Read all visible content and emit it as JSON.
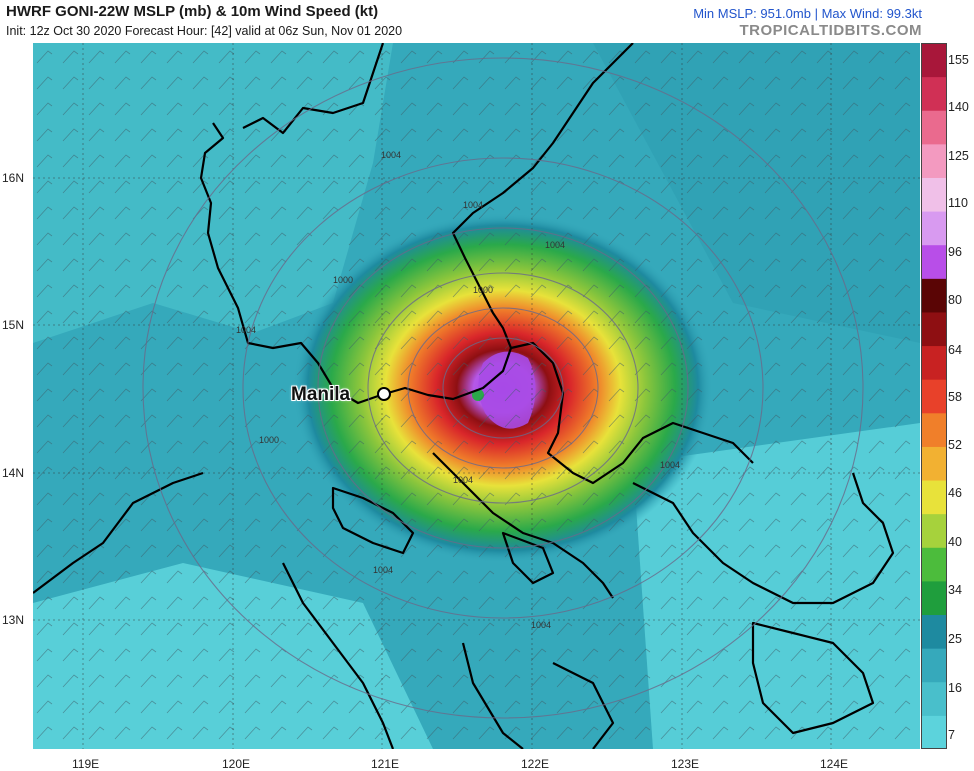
{
  "header": {
    "title": "HWRF GONI-22W MSLP (mb) & 10m Wind Speed (kt)",
    "subtitle": "Init: 12z Oct 30 2020   Forecast Hour: [42]   valid at 06z Sun, Nov 01 2020",
    "stats": "Min MSLP: 951.0mb | Max Wind: 99.3kt",
    "brand": "TROPICALTIDBITS.COM"
  },
  "map": {
    "city_label": "Manila",
    "isobar_labels": [
      "1004",
      "1004",
      "1000",
      "1004",
      "1000",
      "1004",
      "1004",
      "1004",
      "1004",
      "1000",
      "1004"
    ],
    "lat_labels": [
      "16N",
      "15N",
      "14N",
      "13N"
    ],
    "lon_labels": [
      "119E",
      "120E",
      "121E",
      "122E",
      "123E",
      "124E"
    ]
  },
  "colorbar": {
    "units": "kt",
    "tick_labels": [
      "155",
      "140",
      "125",
      "110",
      "96",
      "80",
      "64",
      "58",
      "52",
      "46",
      "40",
      "34",
      "25",
      "16",
      "7"
    ],
    "colors": [
      "#5cd3dc",
      "#49bfcb",
      "#36a9bb",
      "#1e8aa0",
      "#1f9e3d",
      "#4cbc3c",
      "#a6d23c",
      "#e8e23a",
      "#f2b132",
      "#f07f2a",
      "#e8412a",
      "#c82222",
      "#8e0f12",
      "#5a0505",
      "#b84ee8",
      "#d89af0",
      "#f0c0e8",
      "#f39ac0",
      "#ea6a8e",
      "#d03055",
      "#a8173a"
    ]
  }
}
